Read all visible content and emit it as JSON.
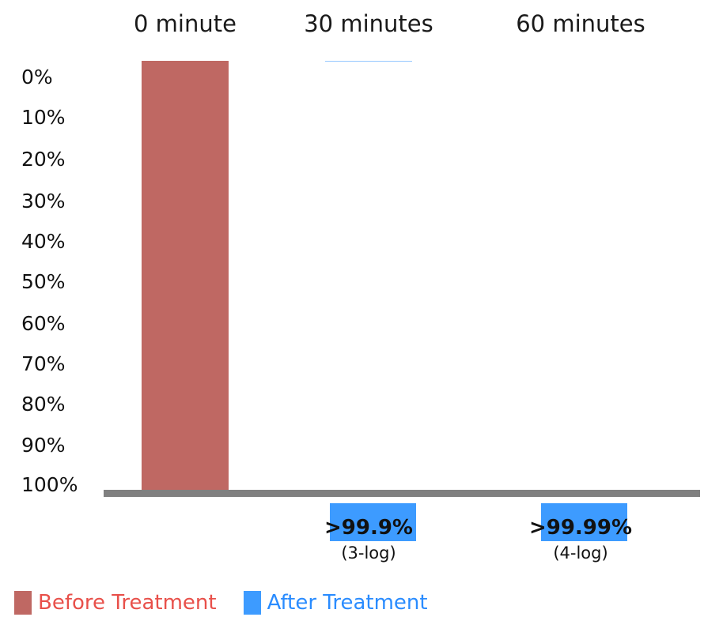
{
  "chart_data": {
    "type": "bar",
    "categories": [
      "0 minute",
      "30 minutes",
      "60 minutes"
    ],
    "y_tick_labels": [
      "0%",
      "10%",
      "20%",
      "30%",
      "40%",
      "50%",
      "60%",
      "70%",
      "80%",
      "90%",
      "100%"
    ],
    "ylim": [
      0,
      100
    ],
    "y_inverted": true,
    "series": [
      {
        "name": "Before Treatment",
        "color": "#bf6863",
        "values": [
          100,
          null,
          null
        ]
      },
      {
        "name": "After Treatment",
        "color": "#3d9bff",
        "values": [
          null,
          0.1,
          0.01
        ]
      }
    ],
    "annotations": [
      {
        "category": "30 minutes",
        "text": ">99.9%",
        "subtext": "(3-log)"
      },
      {
        "category": "60 minutes",
        "text": ">99.99%",
        "subtext": "(4-log)"
      }
    ],
    "legend_position": "bottom-left",
    "baseline_color": "#808080"
  }
}
